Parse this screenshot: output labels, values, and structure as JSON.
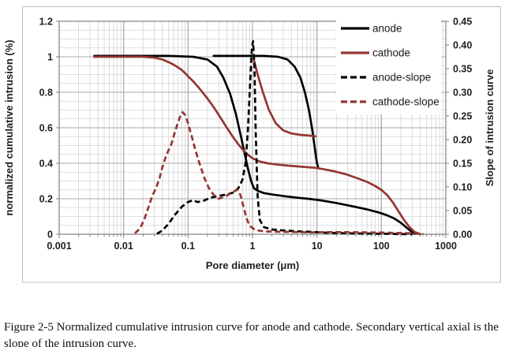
{
  "figure": {
    "caption": "Figure 2-5 Normalized cumulative intrusion curve for anode and cathode. Secondary vertical axial is the slope of the intrusion curve."
  },
  "colors": {
    "anode": "#000000",
    "cathode": "#943634",
    "grid_minor": "#d4d4d4",
    "grid_major": "#a8a8a8",
    "axis": "#808080",
    "tick_text": "#1f1f1f",
    "border": "#bfbfbf"
  },
  "chart_data": {
    "type": "line",
    "x_axis": {
      "label": "Pore diameter (μm)",
      "scale": "log",
      "min": 0.001,
      "max": 1000,
      "ticks": [
        "0.001",
        "0.01",
        "0.1",
        "1",
        "10",
        "100",
        "1000"
      ]
    },
    "y_left": {
      "label": "normalized cumulative intrusion (%)",
      "min": 0,
      "max": 1.2,
      "major_step": 0.2,
      "minor_step": 0.05,
      "ticks": [
        "0",
        "0.2",
        "0.4",
        "0.6",
        "0.8",
        "1",
        "1.2"
      ]
    },
    "y_right": {
      "label": "Slope of intrusion curve",
      "min": 0,
      "max": 0.45,
      "major_step": 0.05,
      "ticks": [
        "0.00",
        "0.05",
        "0.10",
        "0.15",
        "0.20",
        "0.25",
        "0.30",
        "0.35",
        "0.40",
        "0.45"
      ]
    },
    "grid": "on",
    "legend": {
      "position": "top-right-inside",
      "items": [
        {
          "label": "anode",
          "color": "#000000",
          "dash": "solid"
        },
        {
          "label": "cathode",
          "color": "#943634",
          "dash": "solid"
        },
        {
          "label": "anode-slope",
          "color": "#000000",
          "dash": "dashed"
        },
        {
          "label": "cathode-slope",
          "color": "#943634",
          "dash": "dashed"
        }
      ]
    },
    "series": [
      {
        "name": "anode",
        "branch": "main",
        "axis": "left",
        "color": "#000000",
        "style": "solid",
        "points": [
          [
            0.0035,
            1.005
          ],
          [
            0.05,
            1.005
          ],
          [
            0.12,
            1.0
          ],
          [
            0.2,
            0.985
          ],
          [
            0.28,
            0.945
          ],
          [
            0.35,
            0.885
          ],
          [
            0.45,
            0.79
          ],
          [
            0.55,
            0.68
          ],
          [
            0.65,
            0.565
          ],
          [
            0.75,
            0.46
          ],
          [
            0.85,
            0.37
          ],
          [
            0.95,
            0.3
          ],
          [
            1.05,
            0.26
          ],
          [
            1.2,
            0.245
          ],
          [
            1.5,
            0.232
          ],
          [
            2,
            0.224
          ],
          [
            3,
            0.215
          ],
          [
            5,
            0.206
          ],
          [
            8,
            0.198
          ],
          [
            12,
            0.19
          ],
          [
            20,
            0.176
          ],
          [
            35,
            0.158
          ],
          [
            60,
            0.14
          ],
          [
            90,
            0.123
          ],
          [
            120,
            0.108
          ],
          [
            160,
            0.088
          ],
          [
            200,
            0.065
          ],
          [
            250,
            0.035
          ],
          [
            300,
            0.012
          ],
          [
            330,
            0.002
          ]
        ]
      },
      {
        "name": "anode",
        "branch": "upper",
        "axis": "left",
        "color": "#000000",
        "style": "solid",
        "points": [
          [
            0.25,
            1.005
          ],
          [
            1.5,
            1.005
          ],
          [
            2.5,
            1.0
          ],
          [
            3.5,
            0.985
          ],
          [
            4.5,
            0.945
          ],
          [
            5.5,
            0.885
          ],
          [
            6.5,
            0.8
          ],
          [
            7.5,
            0.7
          ],
          [
            8.5,
            0.585
          ],
          [
            9.3,
            0.48
          ],
          [
            10,
            0.4
          ],
          [
            10.4,
            0.378
          ]
        ]
      },
      {
        "name": "cathode",
        "branch": "main",
        "axis": "left",
        "color": "#943634",
        "style": "solid",
        "points": [
          [
            0.0035,
            1.0
          ],
          [
            0.02,
            1.0
          ],
          [
            0.03,
            0.995
          ],
          [
            0.04,
            0.985
          ],
          [
            0.05,
            0.97
          ],
          [
            0.06,
            0.955
          ],
          [
            0.07,
            0.94
          ],
          [
            0.08,
            0.925
          ],
          [
            0.09,
            0.908
          ],
          [
            0.1,
            0.89
          ],
          [
            0.12,
            0.862
          ],
          [
            0.15,
            0.822
          ],
          [
            0.2,
            0.765
          ],
          [
            0.25,
            0.716
          ],
          [
            0.3,
            0.672
          ],
          [
            0.4,
            0.6
          ],
          [
            0.5,
            0.547
          ],
          [
            0.6,
            0.508
          ],
          [
            0.7,
            0.478
          ],
          [
            0.85,
            0.448
          ],
          [
            1.0,
            0.428
          ],
          [
            1.3,
            0.41
          ],
          [
            1.7,
            0.4
          ],
          [
            2.5,
            0.392
          ],
          [
            4,
            0.385
          ],
          [
            6,
            0.38
          ],
          [
            9,
            0.375
          ],
          [
            12,
            0.368
          ],
          [
            18,
            0.356
          ],
          [
            28,
            0.338
          ],
          [
            42,
            0.316
          ],
          [
            60,
            0.295
          ],
          [
            80,
            0.272
          ],
          [
            100,
            0.25
          ],
          [
            125,
            0.218
          ],
          [
            150,
            0.18
          ],
          [
            180,
            0.135
          ],
          [
            220,
            0.085
          ],
          [
            270,
            0.042
          ],
          [
            330,
            0.012
          ],
          [
            400,
            0.001
          ]
        ]
      },
      {
        "name": "cathode",
        "branch": "upper",
        "axis": "left",
        "color": "#943634",
        "style": "solid",
        "points": [
          [
            1.05,
            0.985
          ],
          [
            1.2,
            0.9
          ],
          [
            1.45,
            0.8
          ],
          [
            1.8,
            0.7
          ],
          [
            2.3,
            0.625
          ],
          [
            3,
            0.585
          ],
          [
            4,
            0.568
          ],
          [
            5.5,
            0.56
          ],
          [
            7.5,
            0.556
          ],
          [
            9.5,
            0.552
          ]
        ]
      },
      {
        "name": "anode-slope",
        "branch": "main",
        "axis": "right",
        "color": "#000000",
        "style": "dashed",
        "points": [
          [
            0.033,
            0.001
          ],
          [
            0.04,
            0.008
          ],
          [
            0.05,
            0.022
          ],
          [
            0.06,
            0.038
          ],
          [
            0.08,
            0.058
          ],
          [
            0.1,
            0.068
          ],
          [
            0.12,
            0.072
          ],
          [
            0.14,
            0.068
          ],
          [
            0.17,
            0.07
          ],
          [
            0.22,
            0.077
          ],
          [
            0.3,
            0.081
          ],
          [
            0.4,
            0.084
          ],
          [
            0.5,
            0.088
          ],
          [
            0.6,
            0.097
          ],
          [
            0.7,
            0.115
          ],
          [
            0.78,
            0.15
          ],
          [
            0.85,
            0.22
          ],
          [
            0.92,
            0.32
          ],
          [
            0.98,
            0.395
          ],
          [
            1.02,
            0.408
          ],
          [
            1.07,
            0.36
          ],
          [
            1.12,
            0.22
          ],
          [
            1.2,
            0.08
          ],
          [
            1.3,
            0.03
          ],
          [
            1.5,
            0.015
          ],
          [
            2,
            0.01
          ],
          [
            3,
            0.008
          ],
          [
            5,
            0.006
          ],
          [
            8,
            0.005
          ],
          [
            15,
            0.003
          ],
          [
            30,
            0.002
          ],
          [
            100,
            0.001
          ],
          [
            300,
            0.0
          ]
        ]
      },
      {
        "name": "cathode-slope",
        "branch": "main",
        "axis": "right",
        "color": "#943634",
        "style": "dashed",
        "points": [
          [
            0.015,
            0.002
          ],
          [
            0.018,
            0.012
          ],
          [
            0.021,
            0.032
          ],
          [
            0.025,
            0.062
          ],
          [
            0.028,
            0.082
          ],
          [
            0.032,
            0.098
          ],
          [
            0.036,
            0.118
          ],
          [
            0.04,
            0.142
          ],
          [
            0.045,
            0.163
          ],
          [
            0.05,
            0.178
          ],
          [
            0.055,
            0.19
          ],
          [
            0.06,
            0.208
          ],
          [
            0.068,
            0.232
          ],
          [
            0.075,
            0.248
          ],
          [
            0.082,
            0.258
          ],
          [
            0.09,
            0.252
          ],
          [
            0.1,
            0.235
          ],
          [
            0.115,
            0.205
          ],
          [
            0.13,
            0.178
          ],
          [
            0.15,
            0.15
          ],
          [
            0.18,
            0.118
          ],
          [
            0.21,
            0.098
          ],
          [
            0.25,
            0.083
          ],
          [
            0.3,
            0.075
          ],
          [
            0.38,
            0.08
          ],
          [
            0.48,
            0.088
          ],
          [
            0.58,
            0.094
          ],
          [
            0.65,
            0.083
          ],
          [
            0.72,
            0.06
          ],
          [
            0.8,
            0.035
          ],
          [
            0.9,
            0.018
          ],
          [
            1.1,
            0.009
          ],
          [
            1.5,
            0.006
          ],
          [
            3,
            0.005
          ],
          [
            8,
            0.004
          ],
          [
            20,
            0.0045
          ],
          [
            60,
            0.004
          ],
          [
            150,
            0.003
          ],
          [
            300,
            0.002
          ],
          [
            450,
            0.0
          ]
        ]
      }
    ]
  }
}
